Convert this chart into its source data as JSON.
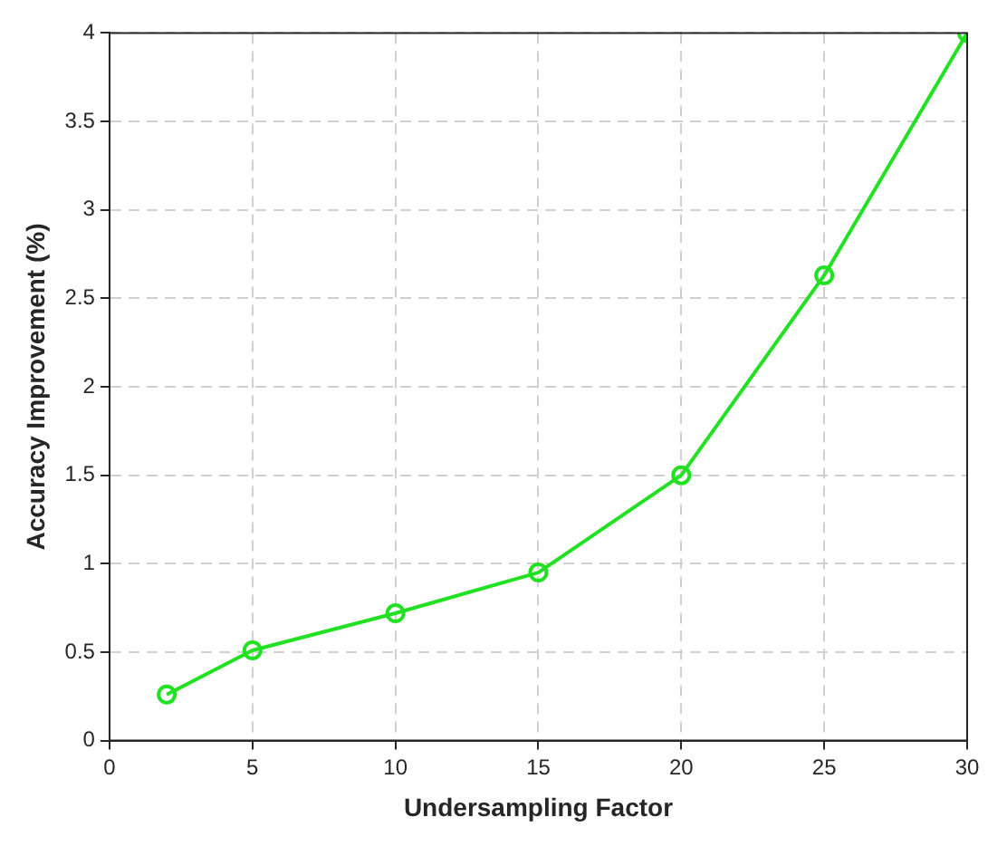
{
  "chart_data": {
    "type": "line",
    "xlabel": "Undersampling Factor",
    "ylabel": "Accuracy Improvement (%)",
    "x": [
      2,
      5,
      10,
      15,
      20,
      25,
      30
    ],
    "series": [
      {
        "color": "#22e022",
        "values": [
          0.26,
          0.51,
          0.72,
          0.95,
          1.5,
          2.63,
          4.0
        ]
      }
    ],
    "xlim": [
      0,
      30
    ],
    "xticks": [
      0,
      5,
      10,
      15,
      20,
      25,
      30
    ],
    "ylim": [
      0,
      4
    ],
    "yticks": [
      0,
      0.5,
      1,
      1.5,
      2,
      2.5,
      3,
      3.5,
      4
    ],
    "grid": true,
    "marker": "circle",
    "line_style": "solid",
    "legend": false
  }
}
